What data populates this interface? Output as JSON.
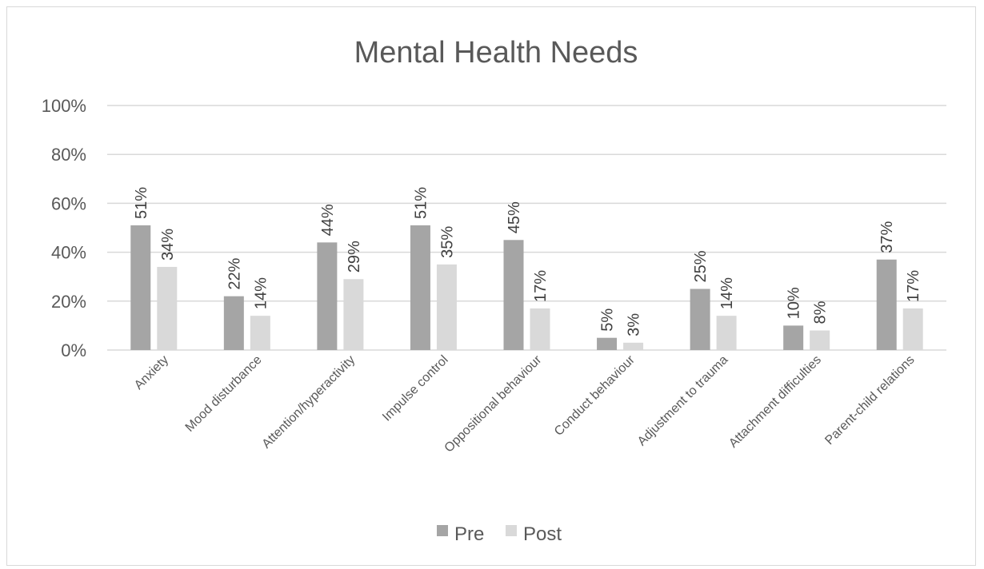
{
  "chart_data": {
    "type": "bar",
    "title": "Mental Health Needs",
    "xlabel": "",
    "ylabel": "",
    "ylim": [
      0,
      100
    ],
    "yticks": [
      "0%",
      "20%",
      "40%",
      "60%",
      "80%",
      "100%"
    ],
    "grid": true,
    "legend_position": "bottom",
    "categories": [
      "Anxiety",
      "Mood disturbance",
      "Attention/hyperactivity",
      "Impulse control",
      "Oppositional behaviour",
      "Conduct behaviour",
      "Adjustment to trauma",
      "Attachment difficulties",
      "Parent-child relations"
    ],
    "series": [
      {
        "name": "Pre",
        "color": "#a5a5a5",
        "values": [
          51,
          22,
          44,
          51,
          45,
          5,
          25,
          10,
          37
        ],
        "labels": [
          "51%",
          "22%",
          "44%",
          "51%",
          "45%",
          "5%",
          "25%",
          "10%",
          "37%"
        ]
      },
      {
        "name": "Post",
        "color": "#d9d9d9",
        "values": [
          34,
          14,
          29,
          35,
          17,
          3,
          14,
          8,
          17
        ],
        "labels": [
          "34%",
          "14%",
          "29%",
          "35%",
          "17%",
          "3%",
          "14%",
          "8%",
          "17%"
        ]
      }
    ]
  }
}
